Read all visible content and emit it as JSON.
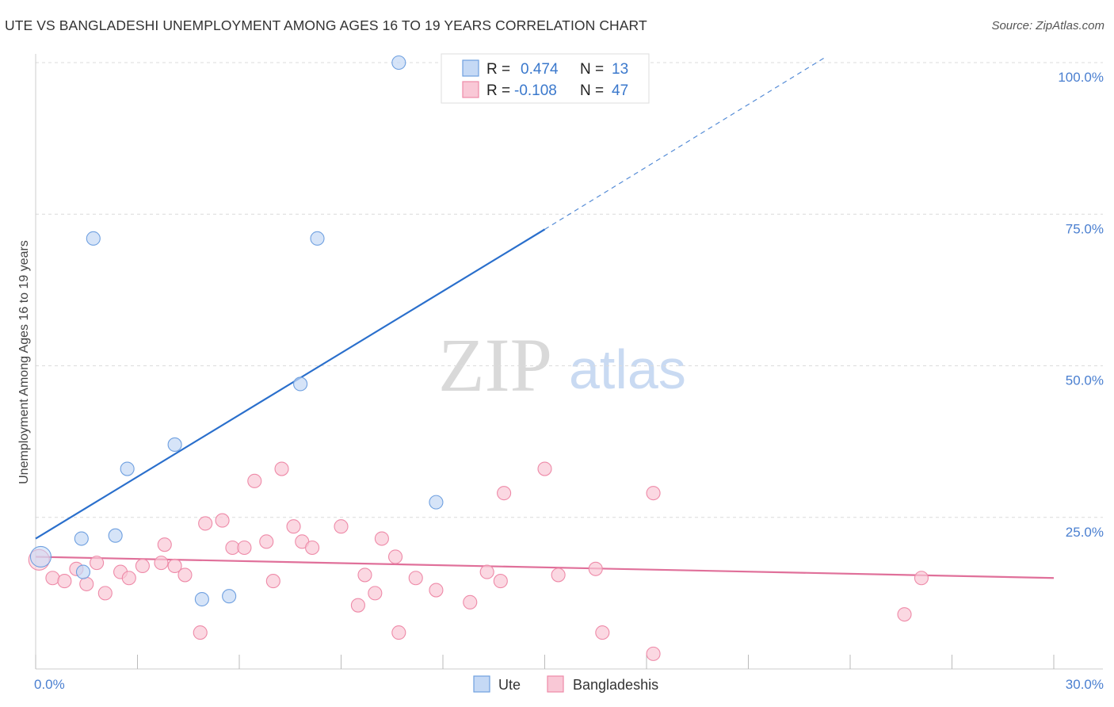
{
  "title": "UTE VS BANGLADESHI UNEMPLOYMENT AMONG AGES 16 TO 19 YEARS CORRELATION CHART",
  "source": "Source: ZipAtlas.com",
  "watermark": {
    "zip": "ZIP",
    "atlas": "atlas"
  },
  "chart_data": {
    "type": "scatter",
    "xlabel": "",
    "ylabel": "Unemployment Among Ages 16 to 19 years",
    "xlim": [
      0,
      30
    ],
    "ylim": [
      0,
      100
    ],
    "x_tick_labels": [
      "0.0%",
      "30.0%"
    ],
    "y_ticks": [
      25,
      50,
      75,
      100
    ],
    "y_tick_labels": [
      "25.0%",
      "50.0%",
      "75.0%",
      "100.0%"
    ],
    "grid": true,
    "legend_top": [
      {
        "r_label": "R =",
        "r_value": "0.474",
        "n_label": "N =",
        "n_value": "13"
      },
      {
        "r_label": "R =",
        "r_value": "-0.108",
        "n_label": "N =",
        "n_value": "47"
      }
    ],
    "series": [
      {
        "name": "Ute",
        "color": "#6fa0e0",
        "fill": "#c5d9f5",
        "line_color": "#2a6fcc",
        "trend": {
          "x0": 0,
          "y0": 21.5,
          "x1": 15,
          "y1": 72.5,
          "x_dash_end": 23.3,
          "y_dash_end": 101
        },
        "points": [
          [
            0.15,
            18.5
          ],
          [
            1.4,
            16.0
          ],
          [
            1.35,
            21.5
          ],
          [
            1.7,
            71.0
          ],
          [
            2.35,
            22.0
          ],
          [
            2.7,
            33.0
          ],
          [
            4.1,
            37.0
          ],
          [
            4.9,
            11.5
          ],
          [
            5.7,
            12.0
          ],
          [
            7.8,
            47.0
          ],
          [
            8.3,
            71.0
          ],
          [
            10.7,
            100.0
          ],
          [
            11.8,
            27.5
          ]
        ]
      },
      {
        "name": "Bangladeshis",
        "color": "#ee8aa8",
        "fill": "#f9c8d6",
        "line_color": "#e0709a",
        "trend": {
          "x0": 0,
          "y0": 18.5,
          "x1": 30,
          "y1": 15.0
        },
        "points": [
          [
            0.1,
            18.0
          ],
          [
            0.5,
            15.0
          ],
          [
            0.85,
            14.5
          ],
          [
            1.2,
            16.5
          ],
          [
            1.5,
            14.0
          ],
          [
            1.8,
            17.5
          ],
          [
            2.05,
            12.5
          ],
          [
            2.5,
            16.0
          ],
          [
            2.75,
            15.0
          ],
          [
            3.15,
            17.0
          ],
          [
            3.7,
            17.5
          ],
          [
            3.8,
            20.5
          ],
          [
            4.1,
            17.0
          ],
          [
            4.4,
            15.5
          ],
          [
            4.85,
            6.0
          ],
          [
            5.0,
            24.0
          ],
          [
            5.5,
            24.5
          ],
          [
            5.8,
            20.0
          ],
          [
            6.15,
            20.0
          ],
          [
            6.45,
            31.0
          ],
          [
            6.8,
            21.0
          ],
          [
            7.0,
            14.5
          ],
          [
            7.25,
            33.0
          ],
          [
            7.6,
            23.5
          ],
          [
            7.85,
            21.0
          ],
          [
            8.15,
            20.0
          ],
          [
            9.0,
            23.5
          ],
          [
            9.5,
            10.5
          ],
          [
            9.7,
            15.5
          ],
          [
            10.0,
            12.5
          ],
          [
            10.2,
            21.5
          ],
          [
            10.6,
            18.5
          ],
          [
            10.7,
            6.0
          ],
          [
            11.2,
            15.0
          ],
          [
            11.8,
            13.0
          ],
          [
            12.8,
            11.0
          ],
          [
            13.3,
            16.0
          ],
          [
            13.7,
            14.5
          ],
          [
            13.8,
            29.0
          ],
          [
            15.0,
            33.0
          ],
          [
            15.4,
            15.5
          ],
          [
            16.5,
            16.5
          ],
          [
            16.7,
            6.0
          ],
          [
            18.2,
            29.0
          ],
          [
            18.2,
            2.5
          ],
          [
            25.6,
            9.0
          ],
          [
            26.1,
            15.0
          ]
        ]
      }
    ]
  }
}
